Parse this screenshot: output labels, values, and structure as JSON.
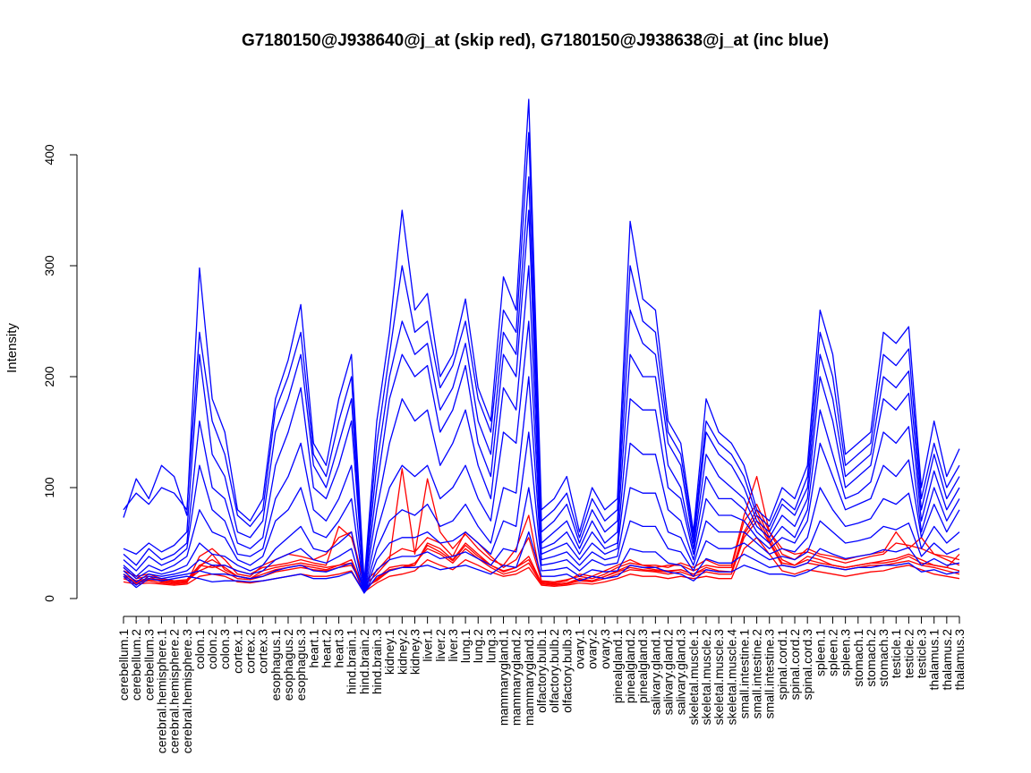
{
  "chart_data": {
    "type": "line",
    "title": "G7180150@J938640@j_at (skip red), G7180150@J938638@j_at (inc blue)",
    "xlabel": "",
    "ylabel": "Intensity",
    "ylim": [
      0,
      400
    ],
    "yticks": [
      0,
      100,
      200,
      300,
      400
    ],
    "grid": false,
    "legend": "none",
    "categories": [
      "cerebellum.1",
      "cerebellum.2",
      "cerebellum.3",
      "cerebral.hemisphere.1",
      "cerebral.hemisphere.2",
      "cerebral.hemisphere.3",
      "colon.1",
      "colon.2",
      "colon.3",
      "cortex.1",
      "cortex.2",
      "cortex.3",
      "esophagus.1",
      "esophagus.2",
      "esophagus.3",
      "heart.1",
      "heart.2",
      "heart.3",
      "hind.brain.1",
      "hind.brain.2",
      "hind.brain.3",
      "kidney.1",
      "kidney.2",
      "kidney.3",
      "liver.1",
      "liver.2",
      "liver.3",
      "lung.1",
      "lung.2",
      "lung.3",
      "mammarygland.1",
      "mammarygland.2",
      "mammarygland.3",
      "olfactory.bulb.1",
      "olfactory.bulb.2",
      "olfactory.bulb.3",
      "ovary.1",
      "ovary.2",
      "ovary.3",
      "pinealgland.1",
      "pinealgland.2",
      "pinealgland.3",
      "salivary.gland.1",
      "salivary.gland.2",
      "salivary.gland.3",
      "skeletal.muscle.1",
      "skeletal.muscle.2",
      "skeletal.muscle.3",
      "skeletal.muscle.4",
      "small.intestine.1",
      "small.intestine.2",
      "small.intestine.3",
      "spinal.cord.1",
      "spinal.cord.2",
      "spinal.cord.3",
      "spleen.1",
      "spleen.2",
      "spleen.3",
      "stomach.1",
      "stomach.2",
      "stomach.3",
      "testicle.1",
      "testicle.2",
      "testicle.3",
      "thalamus.1",
      "thalamus.2",
      "thalamus.3"
    ],
    "series": [
      {
        "color": "#ff0000",
        "values": [
          28,
          18,
          20,
          15,
          14,
          15,
          30,
          35,
          28,
          20,
          18,
          25,
          28,
          30,
          32,
          30,
          28,
          30,
          35,
          8,
          18,
          28,
          30,
          30,
          50,
          45,
          35,
          50,
          40,
          30,
          25,
          28,
          38,
          14,
          13,
          14,
          18,
          16,
          20,
          25,
          30,
          28,
          26,
          25,
          26,
          22,
          28,
          25,
          24,
          60,
          80,
          55,
          35,
          30,
          38,
          35,
          30,
          28,
          30,
          32,
          34,
          36,
          40,
          35,
          30,
          28,
          25
        ]
      },
      {
        "color": "#ff0000",
        "values": [
          22,
          16,
          18,
          17,
          15,
          16,
          25,
          30,
          24,
          18,
          17,
          20,
          24,
          26,
          28,
          26,
          25,
          28,
          30,
          10,
          16,
          25,
          28,
          32,
          45,
          40,
          32,
          45,
          36,
          28,
          22,
          25,
          32,
          13,
          12,
          13,
          16,
          15,
          18,
          22,
          26,
          25,
          24,
          22,
          24,
          20,
          24,
          22,
          22,
          55,
          70,
          50,
          30,
          28,
          32,
          30,
          28,
          26,
          28,
          30,
          30,
          32,
          34,
          30,
          28,
          25,
          22
        ]
      },
      {
        "color": "#ff0000",
        "values": [
          18,
          14,
          16,
          14,
          13,
          14,
          38,
          45,
          35,
          22,
          20,
          30,
          35,
          40,
          38,
          35,
          40,
          55,
          60,
          12,
          22,
          35,
          117,
          40,
          108,
          60,
          45,
          58,
          45,
          35,
          30,
          45,
          75,
          15,
          14,
          16,
          22,
          20,
          25,
          30,
          35,
          30,
          30,
          28,
          32,
          28,
          35,
          30,
          30,
          75,
          110,
          60,
          40,
          35,
          45,
          40,
          38,
          35,
          38,
          40,
          42,
          60,
          45,
          55,
          40,
          35,
          30
        ]
      },
      {
        "color": "#ff0000",
        "values": [
          15,
          13,
          14,
          13,
          12,
          13,
          20,
          22,
          20,
          15,
          14,
          16,
          18,
          20,
          22,
          20,
          20,
          22,
          25,
          6,
          14,
          20,
          22,
          25,
          35,
          30,
          26,
          35,
          30,
          24,
          20,
          22,
          28,
          12,
          11,
          12,
          14,
          13,
          15,
          18,
          22,
          20,
          20,
          18,
          20,
          18,
          20,
          18,
          18,
          45,
          55,
          40,
          25,
          22,
          26,
          24,
          22,
          20,
          22,
          24,
          25,
          28,
          30,
          26,
          22,
          20,
          18
        ]
      },
      {
        "color": "#ff0000",
        "values": [
          25,
          20,
          22,
          18,
          16,
          17,
          30,
          28,
          30,
          25,
          22,
          28,
          30,
          32,
          35,
          32,
          30,
          65,
          55,
          15,
          25,
          38,
          45,
          42,
          55,
          50,
          38,
          60,
          50,
          38,
          28,
          35,
          55,
          16,
          15,
          17,
          20,
          18,
          22,
          28,
          32,
          30,
          28,
          30,
          30,
          25,
          30,
          28,
          28,
          70,
          85,
          60,
          45,
          40,
          42,
          38,
          35,
          32,
          35,
          38,
          40,
          50,
          48,
          45,
          40,
          38,
          35
        ]
      },
      {
        "color": "#ff0000",
        "values": [
          20,
          15,
          17,
          16,
          14,
          15,
          28,
          40,
          26,
          20,
          18,
          22,
          26,
          28,
          30,
          28,
          26,
          30,
          32,
          9,
          17,
          26,
          28,
          30,
          48,
          42,
          34,
          48,
          38,
          30,
          24,
          28,
          35,
          14,
          13,
          14,
          17,
          16,
          20,
          24,
          28,
          26,
          25,
          24,
          26,
          22,
          26,
          24,
          24,
          58,
          75,
          52,
          32,
          30,
          35,
          32,
          30,
          28,
          30,
          32,
          32,
          34,
          38,
          32,
          30,
          28,
          40
        ]
      },
      {
        "color": "#0000ff",
        "values": [
          73,
          108,
          90,
          120,
          110,
          75,
          298,
          180,
          150,
          80,
          70,
          90,
          180,
          215,
          265,
          140,
          120,
          180,
          220,
          15,
          160,
          240,
          350,
          260,
          275,
          200,
          220,
          270,
          190,
          160,
          290,
          260,
          450,
          80,
          90,
          110,
          60,
          100,
          80,
          90,
          340,
          270,
          260,
          160,
          140,
          60,
          180,
          150,
          140,
          120,
          80,
          70,
          100,
          90,
          120,
          260,
          220,
          130,
          140,
          150,
          240,
          230,
          245,
          100,
          160,
          110,
          135
        ]
      },
      {
        "color": "#0000ff",
        "values": [
          80,
          95,
          85,
          100,
          95,
          80,
          240,
          160,
          130,
          75,
          65,
          80,
          170,
          200,
          240,
          130,
          110,
          160,
          200,
          12,
          140,
          220,
          300,
          240,
          250,
          190,
          210,
          250,
          180,
          150,
          260,
          240,
          420,
          70,
          80,
          95,
          55,
          90,
          70,
          80,
          300,
          250,
          240,
          150,
          130,
          55,
          160,
          140,
          130,
          110,
          75,
          65,
          90,
          80,
          110,
          240,
          200,
          120,
          130,
          140,
          220,
          210,
          225,
          90,
          140,
          100,
          120
        ]
      },
      {
        "color": "#0000ff",
        "values": [
          45,
          40,
          50,
          42,
          48,
          60,
          220,
          130,
          110,
          60,
          55,
          70,
          150,
          180,
          220,
          120,
          100,
          140,
          180,
          10,
          120,
          200,
          250,
          220,
          230,
          170,
          190,
          230,
          160,
          130,
          240,
          220,
          380,
          60,
          70,
          85,
          50,
          80,
          60,
          70,
          260,
          230,
          220,
          140,
          120,
          50,
          150,
          130,
          120,
          100,
          70,
          60,
          85,
          75,
          100,
          220,
          180,
          110,
          120,
          130,
          200,
          190,
          205,
          80,
          130,
          90,
          110
        ]
      },
      {
        "color": "#0000ff",
        "values": [
          40,
          30,
          45,
          35,
          40,
          50,
          160,
          100,
          90,
          50,
          45,
          55,
          120,
          150,
          190,
          100,
          90,
          120,
          160,
          8,
          100,
          180,
          220,
          200,
          210,
          150,
          170,
          210,
          140,
          110,
          220,
          200,
          350,
          50,
          60,
          70,
          45,
          70,
          50,
          60,
          220,
          200,
          200,
          120,
          100,
          45,
          130,
          110,
          100,
          90,
          65,
          55,
          75,
          65,
          90,
          200,
          160,
          100,
          110,
          120,
          180,
          170,
          185,
          70,
          115,
          80,
          100
        ]
      },
      {
        "color": "#0000ff",
        "values": [
          35,
          25,
          38,
          30,
          35,
          45,
          120,
          80,
          70,
          40,
          38,
          45,
          90,
          110,
          140,
          80,
          70,
          90,
          120,
          7,
          80,
          140,
          180,
          160,
          170,
          120,
          140,
          170,
          120,
          90,
          190,
          170,
          300,
          45,
          50,
          60,
          40,
          60,
          45,
          50,
          180,
          170,
          170,
          100,
          90,
          40,
          110,
          90,
          90,
          80,
          60,
          50,
          65,
          55,
          80,
          170,
          130,
          90,
          95,
          105,
          150,
          140,
          155,
          60,
          100,
          70,
          90
        ]
      },
      {
        "color": "#0000ff",
        "values": [
          30,
          20,
          30,
          25,
          30,
          38,
          80,
          60,
          55,
          35,
          30,
          38,
          70,
          80,
          100,
          60,
          55,
          70,
          90,
          6,
          60,
          100,
          120,
          110,
          120,
          90,
          100,
          120,
          90,
          70,
          150,
          140,
          250,
          40,
          45,
          50,
          35,
          50,
          40,
          45,
          140,
          130,
          130,
          80,
          70,
          35,
          90,
          75,
          75,
          70,
          55,
          45,
          55,
          50,
          70,
          140,
          110,
          80,
          85,
          90,
          120,
          110,
          125,
          55,
          85,
          60,
          80
        ]
      },
      {
        "color": "#0000ff",
        "values": [
          28,
          18,
          25,
          22,
          25,
          30,
          50,
          40,
          38,
          30,
          25,
          30,
          45,
          55,
          65,
          45,
          42,
          50,
          60,
          5,
          45,
          70,
          80,
          75,
          85,
          65,
          70,
          85,
          65,
          50,
          100,
          95,
          200,
          35,
          38,
          42,
          30,
          42,
          35,
          38,
          100,
          95,
          95,
          60,
          55,
          30,
          70,
          60,
          60,
          60,
          50,
          40,
          45,
          42,
          55,
          100,
          80,
          65,
          68,
          72,
          90,
          85,
          95,
          45,
          65,
          50,
          60
        ]
      },
      {
        "color": "#0000ff",
        "values": [
          25,
          15,
          22,
          20,
          22,
          25,
          35,
          30,
          30,
          25,
          22,
          25,
          35,
          40,
          45,
          35,
          32,
          38,
          45,
          5,
          35,
          50,
          55,
          55,
          60,
          50,
          52,
          60,
          50,
          40,
          70,
          65,
          150,
          30,
          32,
          35,
          25,
          35,
          30,
          32,
          70,
          65,
          65,
          45,
          42,
          25,
          52,
          45,
          45,
          50,
          42,
          35,
          38,
          35,
          42,
          70,
          60,
          50,
          52,
          55,
          65,
          62,
          68,
          38,
          50,
          40,
          45
        ]
      },
      {
        "color": "#0000ff",
        "values": [
          22,
          12,
          20,
          18,
          20,
          22,
          25,
          22,
          22,
          20,
          18,
          20,
          25,
          28,
          30,
          25,
          24,
          28,
          32,
          5,
          26,
          35,
          38,
          38,
          42,
          36,
          38,
          42,
          36,
          30,
          45,
          42,
          100,
          25,
          26,
          28,
          20,
          26,
          24,
          25,
          45,
          42,
          42,
          32,
          30,
          20,
          36,
          32,
          32,
          40,
          34,
          28,
          30,
          28,
          32,
          45,
          40,
          36,
          38,
          40,
          44,
          42,
          46,
          30,
          36,
          30,
          32
        ]
      },
      {
        "color": "#0000ff",
        "values": [
          20,
          10,
          18,
          16,
          18,
          20,
          18,
          15,
          16,
          16,
          15,
          16,
          18,
          20,
          22,
          18,
          18,
          20,
          24,
          5,
          20,
          25,
          28,
          28,
          30,
          26,
          28,
          30,
          26,
          22,
          30,
          28,
          60,
          20,
          20,
          22,
          16,
          20,
          18,
          20,
          30,
          28,
          28,
          24,
          22,
          16,
          26,
          24,
          24,
          30,
          26,
          22,
          22,
          20,
          24,
          30,
          28,
          26,
          28,
          28,
          30,
          30,
          32,
          24,
          26,
          22,
          24
        ]
      }
    ]
  }
}
